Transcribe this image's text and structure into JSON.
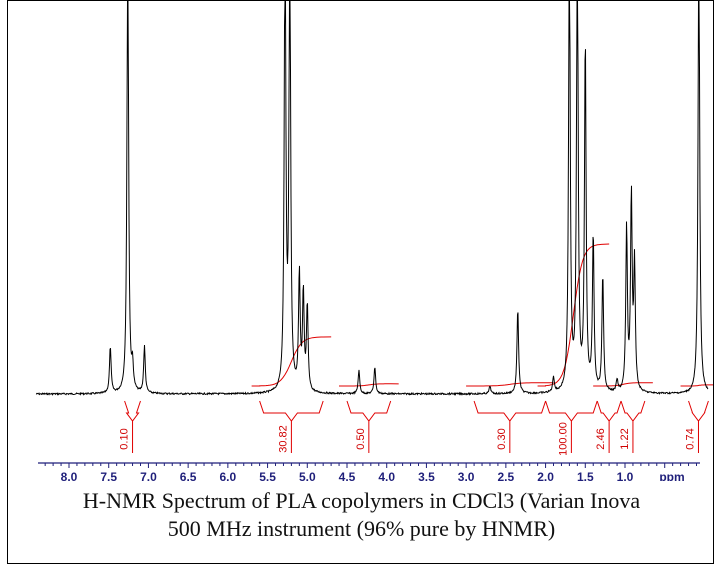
{
  "caption": {
    "line1": "H-NMR Spectrum of PLA copolymers in CDCl3 (Varian Inova",
    "line2": "500 MHz instrument (96% pure by HNMR)"
  },
  "colors": {
    "spectrum": "#000000",
    "integral": "#e00000",
    "axis": "#1f1f7a"
  },
  "chart_data": {
    "type": "line",
    "x_unit": "ppm",
    "xlim": [
      8.5,
      0.0
    ],
    "x_reversed": true,
    "ticks": [
      "8.0",
      "7.5",
      "7.0",
      "6.5",
      "6.0",
      "5.5",
      "5.0",
      "4.5",
      "4.0",
      "3.5",
      "3.0",
      "2.5",
      "2.0",
      "1.5",
      "1.0"
    ],
    "tick_values": [
      8.0,
      7.5,
      7.0,
      6.5,
      6.0,
      5.5,
      5.0,
      4.5,
      4.0,
      3.5,
      3.0,
      2.5,
      2.0,
      1.5,
      1.0
    ],
    "axis_label": "ppm",
    "peaks": [
      {
        "ppm": 7.48,
        "height": 0.12
      },
      {
        "ppm": 7.26,
        "height": 1.2
      },
      {
        "ppm": 7.2,
        "height": 0.06
      },
      {
        "ppm": 7.05,
        "height": 0.12
      },
      {
        "ppm": 5.28,
        "height": 1.2
      },
      {
        "ppm": 5.22,
        "height": 1.2
      },
      {
        "ppm": 5.1,
        "height": 0.3
      },
      {
        "ppm": 5.05,
        "height": 0.25
      },
      {
        "ppm": 5.0,
        "height": 0.22
      },
      {
        "ppm": 4.35,
        "height": 0.06
      },
      {
        "ppm": 4.15,
        "height": 0.07
      },
      {
        "ppm": 2.7,
        "height": 0.02
      },
      {
        "ppm": 2.35,
        "height": 0.22
      },
      {
        "ppm": 1.9,
        "height": 0.04
      },
      {
        "ppm": 1.7,
        "height": 1.2
      },
      {
        "ppm": 1.6,
        "height": 1.2
      },
      {
        "ppm": 1.5,
        "height": 0.9
      },
      {
        "ppm": 1.4,
        "height": 0.4
      },
      {
        "ppm": 1.28,
        "height": 0.3
      },
      {
        "ppm": 1.1,
        "height": 0.03
      },
      {
        "ppm": 0.98,
        "height": 0.42
      },
      {
        "ppm": 0.92,
        "height": 0.5
      },
      {
        "ppm": 0.88,
        "height": 0.32
      },
      {
        "ppm": 0.07,
        "height": 1.2
      }
    ],
    "integrals": [
      {
        "label": "0.10",
        "from": 7.3,
        "to": 7.1,
        "value": 0.1
      },
      {
        "label": "30.82",
        "from": 5.6,
        "to": 4.8,
        "value": 30.82
      },
      {
        "label": "0.50",
        "from": 4.5,
        "to": 3.95,
        "value": 0.5
      },
      {
        "label": "0.30",
        "from": 2.9,
        "to": 2.0,
        "value": 0.3
      },
      {
        "label": "100.00",
        "from": 2.0,
        "to": 1.35,
        "value": 100.0
      },
      {
        "label": "2.46",
        "from": 1.35,
        "to": 1.05,
        "value": 2.46
      },
      {
        "label": "1.22",
        "from": 1.05,
        "to": 0.75,
        "value": 1.22
      },
      {
        "label": "0.74",
        "from": 0.2,
        "to": -0.05,
        "value": 0.74
      }
    ],
    "integral_curves": [
      {
        "from": 5.6,
        "to": 4.8,
        "rise": 0.45
      },
      {
        "from": 2.0,
        "to": 1.3,
        "rise": 1.3
      },
      {
        "from": 4.5,
        "to": 3.95,
        "rise": 0.02
      },
      {
        "from": 2.9,
        "to": 2.0,
        "rise": 0.03
      },
      {
        "from": 1.3,
        "to": 0.75,
        "rise": 0.03
      },
      {
        "from": 0.2,
        "to": -0.05,
        "rise": 0.01
      }
    ]
  }
}
